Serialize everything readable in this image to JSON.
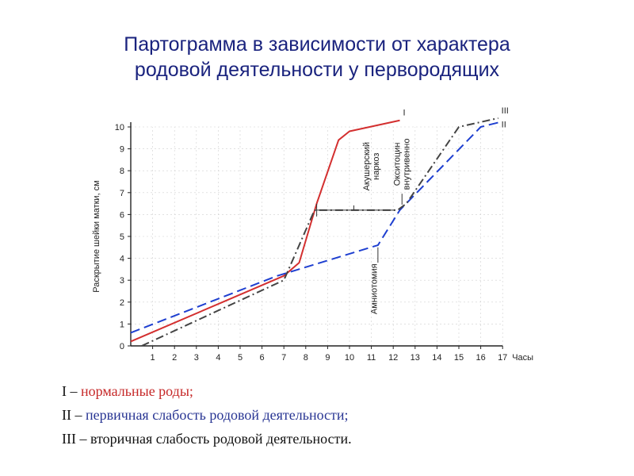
{
  "title": {
    "line1": "Партограмма в зависимости от характера",
    "line2": "родовой деятельности у первородящих"
  },
  "colors": {
    "title": "#1a237e",
    "series_I": "#d32f2f",
    "series_II": "#1e3fd0",
    "series_III": "#444444"
  },
  "chart_data": {
    "type": "line",
    "ylabel": "Раскрытие шейки матки, см",
    "xlabel": "Часы",
    "xlim": [
      0,
      17
    ],
    "ylim": [
      0,
      10
    ],
    "x_ticks": [
      "1",
      "2",
      "3",
      "4",
      "5",
      "6",
      "7",
      "8",
      "9",
      "10",
      "11",
      "12",
      "13",
      "14",
      "15",
      "16",
      "17"
    ],
    "y_ticks": [
      "0",
      "1",
      "2",
      "3",
      "4",
      "5",
      "6",
      "7",
      "8",
      "9",
      "10"
    ],
    "grid": true,
    "series": [
      {
        "name": "I",
        "style": "solid",
        "color": "#d32f2f",
        "x": [
          0,
          7,
          7.7,
          8.5,
          9.5,
          10,
          12.3
        ],
        "y": [
          0.2,
          3.2,
          3.8,
          6.5,
          9.4,
          9.8,
          10.3
        ]
      },
      {
        "name": "II",
        "style": "dashed",
        "color": "#1e3fd0",
        "x": [
          0,
          6.7,
          11.3,
          12.3,
          16,
          16.8
        ],
        "y": [
          0.6,
          3.2,
          4.6,
          6.2,
          10.0,
          10.2
        ]
      },
      {
        "name": "III",
        "style": "dashdot",
        "color": "#444444",
        "x": [
          0.5,
          7,
          8.4,
          12.2,
          12.6,
          15,
          16.8
        ],
        "y": [
          0,
          3,
          6.2,
          6.2,
          6.5,
          10,
          10.4
        ]
      }
    ],
    "annotations": {
      "anesthesia": [
        "Акушерский",
        "наркоз"
      ],
      "oxytocin": [
        "Окситоцин",
        "внутривенно"
      ],
      "amniotomy": "Амниотомия"
    }
  },
  "legend": [
    {
      "numeral": "I",
      "dash": " – ",
      "text": "нормальные роды;"
    },
    {
      "numeral": "II",
      "dash": " – ",
      "text": "первичная слабость родовой деятельности;"
    },
    {
      "numeral": "III",
      "dash": " – ",
      "text": "вторичная слабость родовой деятельности."
    }
  ]
}
